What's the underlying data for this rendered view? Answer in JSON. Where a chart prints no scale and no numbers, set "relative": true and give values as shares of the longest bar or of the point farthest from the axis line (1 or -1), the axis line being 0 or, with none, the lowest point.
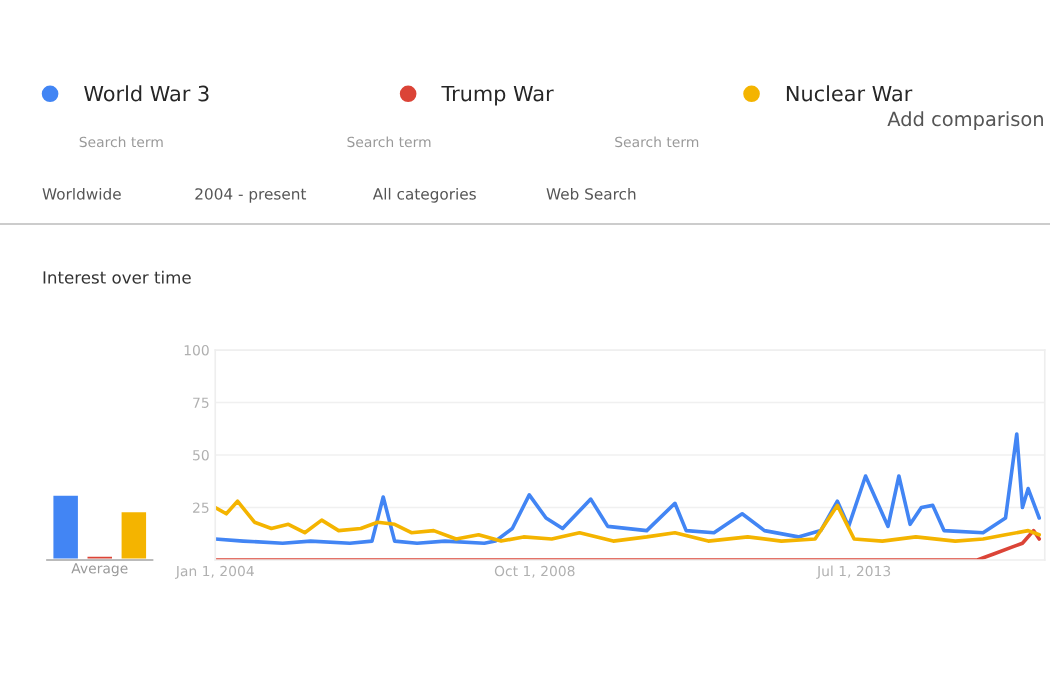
{
  "chart_data": [
    {
      "type": "bar",
      "relative": true,
      "categories": [
        null
      ],
      "xlabel": "Average",
      "series": [
        {
          "color": "#4285f4",
          "values": [
            1
          ]
        },
        {
          "color": "#db4437",
          "values": [
            0.07
          ]
        },
        {
          "color": "#f4b400",
          "values": [
            0.75
          ]
        }
      ],
      "tick_labels": false
    },
    {
      "type": "line",
      "title": "Interest over time",
      "legend": "top",
      "grid": "y",
      "ylim": [
        0,
        100
      ],
      "yticks": [
        25,
        50,
        75,
        100
      ],
      "xlim": [
        "2004-01-01",
        "2016-05-01"
      ],
      "xticks": [
        {
          "value": "2004-01-01",
          "label": "Jan 1, 2004"
        },
        {
          "value": "2008-10-01",
          "label": "Oct 1, 2008"
        },
        {
          "value": "2013-07-01",
          "label": "Jul 1, 2013"
        }
      ],
      "annotations": [
        "Search term",
        "Search term",
        "Search term",
        "Add comparison",
        "Worldwide",
        "2004 - present",
        "All categories",
        "Web Search"
      ],
      "series": [
        {
          "name": "World War 3",
          "color": "#4285f4",
          "x": [
            "2004-01",
            "2004-06",
            "2005-01",
            "2005-06",
            "2006-01",
            "2006-05",
            "2006-07",
            "2006-09",
            "2007-01",
            "2007-06",
            "2008-01",
            "2008-03",
            "2008-06",
            "2008-09",
            "2008-12",
            "2009-03",
            "2009-08",
            "2009-11",
            "2010-06",
            "2010-11",
            "2011-01",
            "2011-06",
            "2011-11",
            "2012-03",
            "2012-09",
            "2013-01",
            "2013-04",
            "2013-06",
            "2013-09",
            "2014-01",
            "2014-03",
            "2014-05",
            "2014-07",
            "2014-09",
            "2014-11",
            "2015-06",
            "2015-10",
            "2015-12",
            "2016-01",
            "2016-02",
            "2016-04"
          ],
          "values": [
            10,
            9,
            8,
            9,
            8,
            9,
            30,
            9,
            8,
            9,
            8,
            9,
            15,
            31,
            20,
            15,
            29,
            16,
            14,
            27,
            14,
            13,
            22,
            14,
            11,
            14,
            28,
            16,
            40,
            16,
            40,
            17,
            25,
            26,
            14,
            13,
            20,
            60,
            25,
            34,
            20
          ]
        },
        {
          "name": "Trump War",
          "color": "#db4437",
          "x": [
            "2004-01",
            "2006-01",
            "2008-01",
            "2010-01",
            "2012-01",
            "2014-01",
            "2015-05",
            "2015-08",
            "2015-11",
            "2016-01",
            "2016-03",
            "2016-04"
          ],
          "values": [
            0,
            0,
            0,
            0,
            0,
            0,
            0,
            3,
            6,
            8,
            14,
            10
          ]
        },
        {
          "name": "Nuclear War",
          "color": "#f4b400",
          "x": [
            "2004-01",
            "2004-03",
            "2004-05",
            "2004-08",
            "2004-11",
            "2005-02",
            "2005-05",
            "2005-08",
            "2005-11",
            "2006-03",
            "2006-06",
            "2006-09",
            "2006-12",
            "2007-04",
            "2007-08",
            "2007-12",
            "2008-04",
            "2008-08",
            "2009-01",
            "2009-06",
            "2009-12",
            "2010-06",
            "2010-11",
            "2011-05",
            "2011-12",
            "2012-06",
            "2012-12",
            "2013-04",
            "2013-07",
            "2013-12",
            "2014-06",
            "2015-01",
            "2015-06",
            "2015-10",
            "2016-02",
            "2016-04"
          ],
          "values": [
            25,
            22,
            28,
            18,
            15,
            17,
            13,
            19,
            14,
            15,
            18,
            17,
            13,
            14,
            10,
            12,
            9,
            11,
            10,
            13,
            9,
            11,
            13,
            9,
            11,
            9,
            10,
            26,
            10,
            9,
            11,
            9,
            10,
            12,
            14,
            12
          ]
        }
      ]
    }
  ]
}
